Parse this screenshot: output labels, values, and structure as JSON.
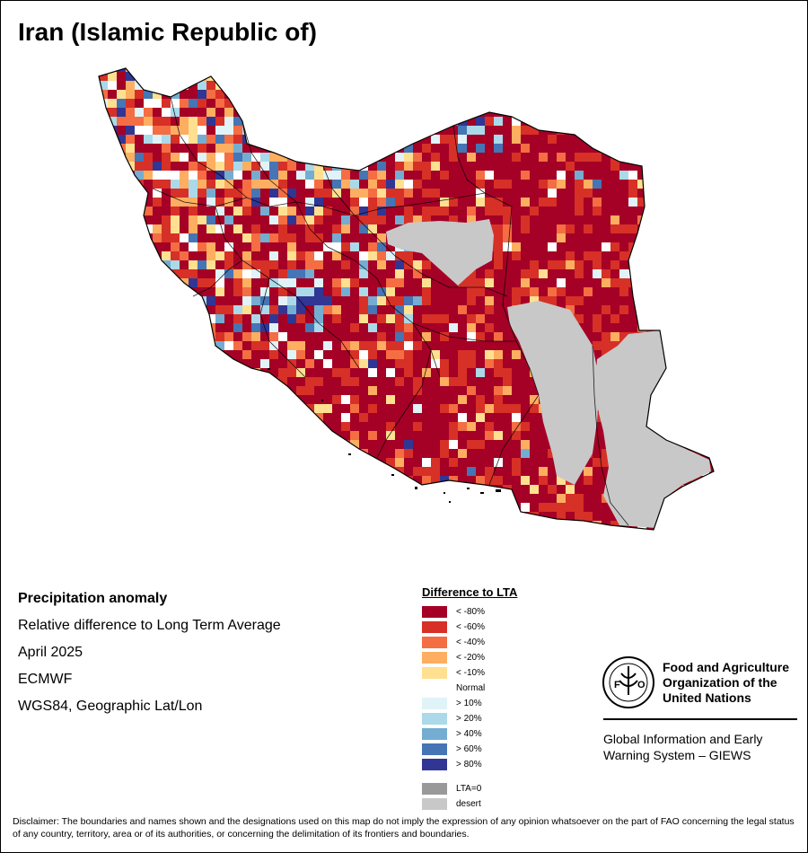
{
  "title": "Iran (Islamic Republic of)",
  "info": {
    "line1": "Precipitation anomaly",
    "line2": "Relative difference to Long Term Average",
    "line3": "April 2025",
    "line4": "ECMWF",
    "line5": "WGS84, Geographic Lat/Lon"
  },
  "legend": {
    "title": "Difference to LTA",
    "items": [
      {
        "label": "< -80%",
        "color": "#a50026"
      },
      {
        "label": "< -60%",
        "color": "#d73027"
      },
      {
        "label": "< -40%",
        "color": "#f46d43"
      },
      {
        "label": "< -20%",
        "color": "#fdae61"
      },
      {
        "label": "< -10%",
        "color": "#fee090"
      },
      {
        "label": "Normal",
        "color": "#ffffff"
      },
      {
        "label": "> 10%",
        "color": "#e0f3f8"
      },
      {
        "label": "> 20%",
        "color": "#abd9e9"
      },
      {
        "label": "> 40%",
        "color": "#74add1"
      },
      {
        "label": "> 60%",
        "color": "#4575b4"
      },
      {
        "label": "> 80%",
        "color": "#313695"
      }
    ],
    "extra": [
      {
        "label": "LTA=0",
        "color": "#999999"
      },
      {
        "label": "desert",
        "color": "#c8c8c8"
      }
    ]
  },
  "org": {
    "line1": "Food and Agriculture",
    "line2": "Organization of the",
    "line3": "United Nations"
  },
  "system": {
    "line1": "Global Information and Early",
    "line2": "Warning System – GIEWS"
  },
  "disclaimer": "Disclaimer: The boundaries and names shown and the designations used on this map do not imply the expression of any opinion whatsoever on the part of FAO concerning the legal status of any country, territory, area or of its authorities, or concerning the delimitation of its frontiers and boundaries."
}
